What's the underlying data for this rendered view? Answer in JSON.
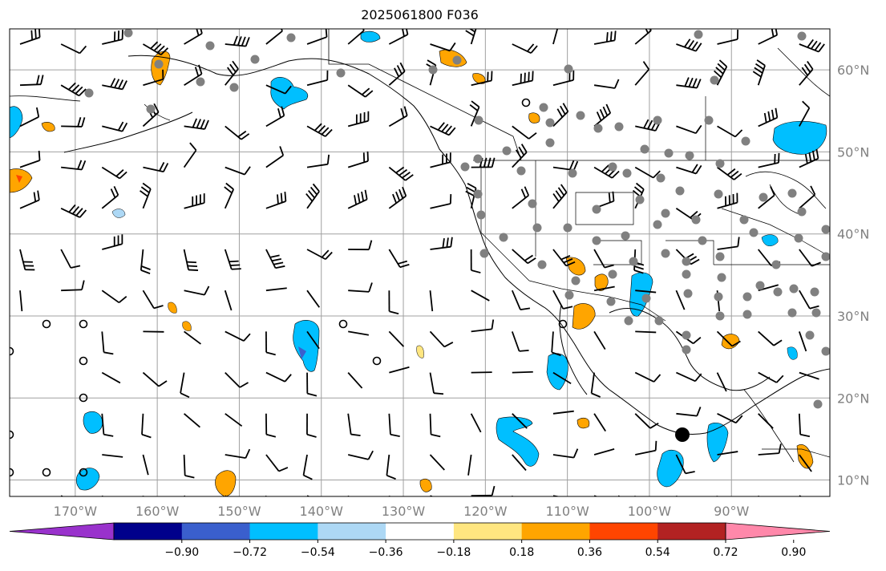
{
  "title": "2025061800 F036",
  "map": {
    "lon_range": [
      -178,
      -78
    ],
    "lat_range": [
      8,
      65
    ],
    "gridlines": true,
    "lon_labels": [
      "170°W",
      "160°W",
      "150°W",
      "140°W",
      "130°W",
      "120°W",
      "110°W",
      "100°W",
      "90°W"
    ],
    "lat_labels": [
      "60°N",
      "50°N",
      "40°N",
      "30°N",
      "20°N",
      "10°N"
    ],
    "grid_color": "#a0a0a0",
    "tick_label_color": "#808080"
  },
  "colorbar": {
    "ticks": [
      "−0.90",
      "−0.72",
      "−0.54",
      "−0.36",
      "−0.18",
      "0.18",
      "0.36",
      "0.54",
      "0.72",
      "0.90"
    ],
    "colors": [
      "#9932cc",
      "#00008b",
      "#3a5fcd",
      "#00bfff",
      "#add8f5",
      "#ffffff",
      "#ffe680",
      "#ffa500",
      "#ff4500",
      "#b22222",
      "#ff88aa"
    ],
    "extend": "both"
  },
  "markers": {
    "large_dot_color": "#000000",
    "small_dot_color": "#808080"
  }
}
